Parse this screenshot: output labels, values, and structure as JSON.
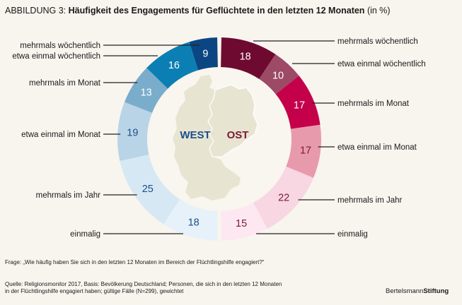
{
  "figure": {
    "prefix": "ABBILDUNG 3:",
    "title": "Häufigkeit des Engagements für Geflüchtete in den letzten 12 Monaten",
    "unit": "(in %)"
  },
  "center": {
    "west_label": "WEST",
    "east_label": "OST",
    "west_color": "#1b4f8a",
    "east_color": "#7a1a35",
    "map_color": "#e8e4d2"
  },
  "chart_data": {
    "type": "pie",
    "variant": "split-donut",
    "title": "Häufigkeit des Engagements für Geflüchtete in den letzten 12 Monaten (in %)",
    "categories": [
      "mehrmals wöchentlich",
      "etwa einmal wöchentlich",
      "mehrmals im Monat",
      "etwa einmal im Monat",
      "mehrmals im Jahr",
      "einmalig"
    ],
    "series": [
      {
        "name": "WEST",
        "side": "left",
        "values": [
          9,
          16,
          13,
          19,
          25,
          18
        ],
        "colors": [
          "#0b4682",
          "#0b7fb3",
          "#79adcb",
          "#b9d4e6",
          "#d6e8f4",
          "#e7f1f9"
        ],
        "text_colors": [
          "#ffffff",
          "#ffffff",
          "#ffffff",
          "#1b4f8a",
          "#1b4f8a",
          "#1b4f8a"
        ]
      },
      {
        "name": "OST",
        "side": "right",
        "values": [
          18,
          10,
          17,
          17,
          22,
          15
        ],
        "colors": [
          "#6e0a30",
          "#9c4a66",
          "#c4004a",
          "#e89aad",
          "#f8d6e2",
          "#fde8f2"
        ],
        "text_colors": [
          "#ffffff",
          "#ffffff",
          "#ffffff",
          "#7a1a35",
          "#7a1a35",
          "#7a1a35"
        ]
      }
    ]
  },
  "footer": {
    "question": "Frage: „Wie häufig haben Sie sich in den letzten 12 Monaten im Bereich der Flüchtlingshilfe engagiert?“",
    "source_line1": "Quelle: Religionsmonitor 2017, Basis: Bevölkerung Deutschland; Personen, die sich in den letzten 12 Monaten",
    "source_line2": "in der Flüchtlingshilfe engagiert haben; gültige Fälle (N=299), gewichtet",
    "brand_regular": "Bertelsmann",
    "brand_bold": "Stiftung"
  }
}
